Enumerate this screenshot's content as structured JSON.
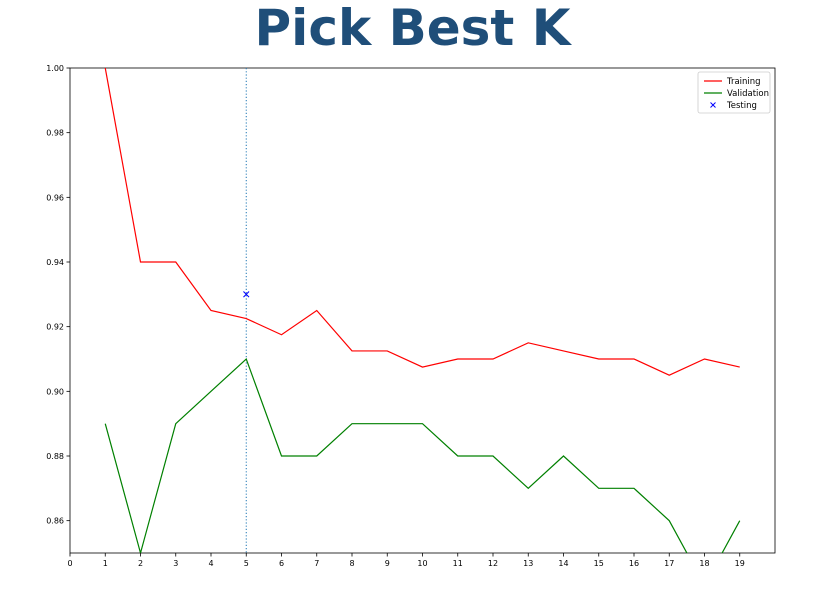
{
  "title": "Pick Best K",
  "chart_data": {
    "type": "line",
    "title": "",
    "xlabel": "",
    "ylabel": "",
    "xlim": [
      0,
      20
    ],
    "ylim": [
      0.85,
      1.0
    ],
    "x_ticks": [
      0,
      1,
      2,
      3,
      4,
      5,
      6,
      7,
      8,
      9,
      10,
      11,
      12,
      13,
      14,
      15,
      16,
      17,
      18,
      19
    ],
    "y_ticks": [
      0.86,
      0.88,
      0.9,
      0.92,
      0.94,
      0.96,
      0.98,
      1.0
    ],
    "y_tick_labels": [
      "0.86",
      "0.88",
      "0.90",
      "0.92",
      "0.94",
      "0.96",
      "0.98",
      "1.00"
    ],
    "legend_position": "top-right",
    "grid": false,
    "vline": {
      "x": 5,
      "style": "dotted",
      "color": "#1f77b4"
    },
    "series": [
      {
        "name": "Training",
        "kind": "line",
        "color": "#ff0000",
        "x": [
          1,
          2,
          3,
          4,
          5,
          6,
          7,
          8,
          9,
          10,
          11,
          12,
          13,
          14,
          15,
          16,
          17,
          18,
          19
        ],
        "y": [
          1.0,
          0.94,
          0.94,
          0.925,
          0.9225,
          0.9175,
          0.925,
          0.9125,
          0.9125,
          0.9075,
          0.91,
          0.91,
          0.915,
          0.9125,
          0.91,
          0.91,
          0.905,
          0.91,
          0.9075
        ]
      },
      {
        "name": "Validation",
        "kind": "line",
        "color": "#008000",
        "x": [
          1,
          2,
          3,
          4,
          5,
          6,
          7,
          8,
          9,
          10,
          11,
          12,
          13,
          14,
          15,
          16,
          17,
          18,
          19
        ],
        "y": [
          0.89,
          0.85,
          0.89,
          0.9,
          0.91,
          0.88,
          0.88,
          0.89,
          0.89,
          0.89,
          0.88,
          0.88,
          0.87,
          0.88,
          0.87,
          0.87,
          0.86,
          0.84,
          0.86
        ]
      },
      {
        "name": "Testing",
        "kind": "marker",
        "marker": "x",
        "color": "#0000ff",
        "x": [
          5
        ],
        "y": [
          0.93
        ]
      }
    ]
  }
}
